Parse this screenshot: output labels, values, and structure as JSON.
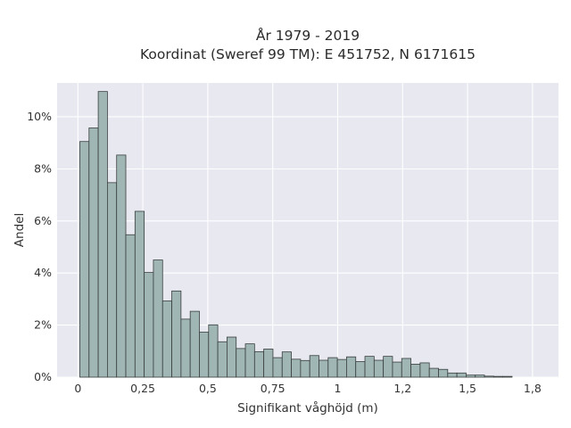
{
  "chart_data": {
    "type": "bar",
    "title": "År 1979 - 2019",
    "subtitle": "Koordinat (Sweref 99 TM): E 451752, N 6171615",
    "xlabel": "Signifikant våghöjd (m)",
    "ylabel": "Andel",
    "xlim": [
      -0.08,
      1.85
    ],
    "ylim": [
      0,
      0.113
    ],
    "grid": true,
    "bin_width": 0.0354,
    "bin_start": 0.0075,
    "values": [
      0.0905,
      0.0957,
      0.1097,
      0.0747,
      0.0853,
      0.0547,
      0.0637,
      0.0402,
      0.045,
      0.0293,
      0.0331,
      0.0223,
      0.0253,
      0.0173,
      0.0201,
      0.0136,
      0.0154,
      0.011,
      0.0128,
      0.0098,
      0.0108,
      0.0075,
      0.0097,
      0.0069,
      0.0064,
      0.0083,
      0.0065,
      0.0075,
      0.0068,
      0.0078,
      0.006,
      0.008,
      0.0065,
      0.008,
      0.0058,
      0.0072,
      0.005,
      0.0055,
      0.0034,
      0.003,
      0.0016,
      0.0016,
      0.0008,
      0.0008,
      0.0004,
      0.0003,
      0.0003
    ],
    "x_ticks": [
      {
        "value": 0,
        "label": "0"
      },
      {
        "value": 0.25,
        "label": "0,25"
      },
      {
        "value": 0.5,
        "label": "0,5"
      },
      {
        "value": 0.75,
        "label": "0,75"
      },
      {
        "value": 1,
        "label": "1"
      },
      {
        "value": 1.25,
        "label": "1,2"
      },
      {
        "value": 1.5,
        "label": "1,5"
      },
      {
        "value": 1.75,
        "label": "1,8"
      }
    ],
    "y_ticks": [
      {
        "value": 0,
        "label": "0%"
      },
      {
        "value": 0.02,
        "label": "2%"
      },
      {
        "value": 0.04,
        "label": "4%"
      },
      {
        "value": 0.06,
        "label": "6%"
      },
      {
        "value": 0.08,
        "label": "8%"
      },
      {
        "value": 0.1,
        "label": "10%"
      }
    ],
    "colors": {
      "bar_fill": "#9fb6b4",
      "bar_edge": "#3a3f3f",
      "plot_background": "#e7e8f0",
      "grid": "#ffffff"
    }
  }
}
